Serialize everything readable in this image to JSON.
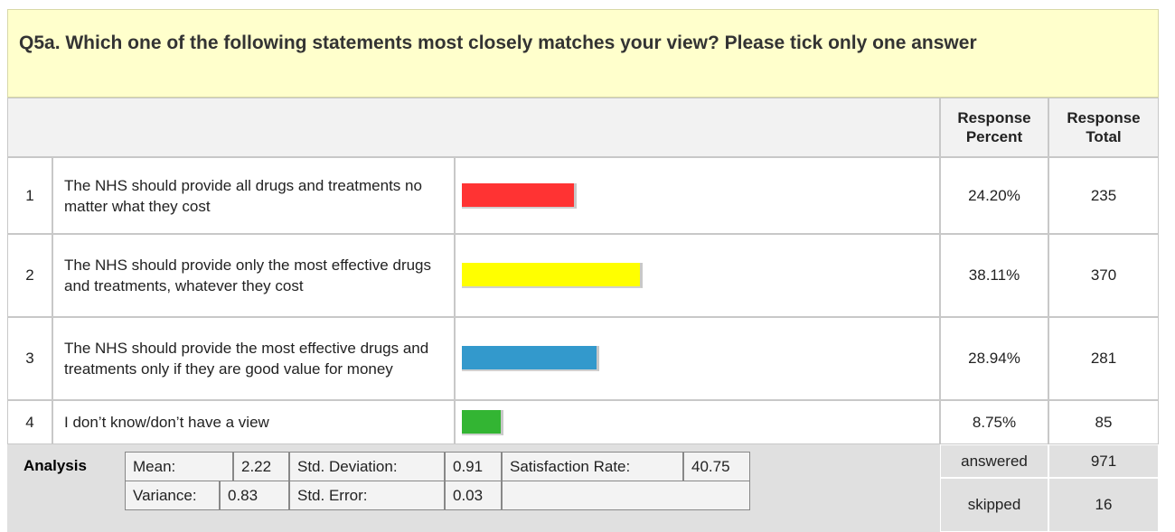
{
  "question": {
    "title": "Q5a. Which one of the following statements most closely matches your view? Please tick only one answer"
  },
  "table": {
    "headers": [
      "Response Percent",
      "Response Total"
    ],
    "rows": [
      {
        "number": 1,
        "text": "The NHS should provide all drugs and treatments no matter what they cost",
        "percent": {
          "value": 24.2,
          "label": "24.20%"
        },
        "total": 235,
        "color": "#ff3333"
      },
      {
        "number": 2,
        "text": "The NHS should provide only the most effective drugs and treatments, whatever they cost",
        "percent": {
          "value": 38.11,
          "label": "38.11%"
        },
        "total": 370,
        "color": "#ffff00"
      },
      {
        "number": 3,
        "text": "The NHS should provide the most effective drugs and treatments only if they are good value for money",
        "percent": {
          "value": 28.94,
          "label": "28.94%"
        },
        "total": 281,
        "color": "#3399cc"
      },
      {
        "number": 4,
        "text": "I don’t know/don’t have a view",
        "percent": {
          "value": 8.75,
          "label": "8.75%"
        },
        "total": 85,
        "color": "#33b533"
      }
    ]
  },
  "analysis": {
    "label": "Analysis",
    "stats": [
      [
        {
          "label": "Mean:",
          "value": 2.22
        },
        {
          "label": "Std. Deviation:",
          "value": 0.91
        },
        {
          "label": "Satisfaction Rate:",
          "value": 40.75
        }
      ],
      [
        {
          "label": "Variance:",
          "value": 0.83
        },
        {
          "label": "Std. Error:",
          "value": 0.03
        }
      ]
    ]
  },
  "summary": {
    "answered": {
      "label": "answered",
      "value": 971
    },
    "skipped": {
      "label": "skipped",
      "value": 16
    }
  }
}
